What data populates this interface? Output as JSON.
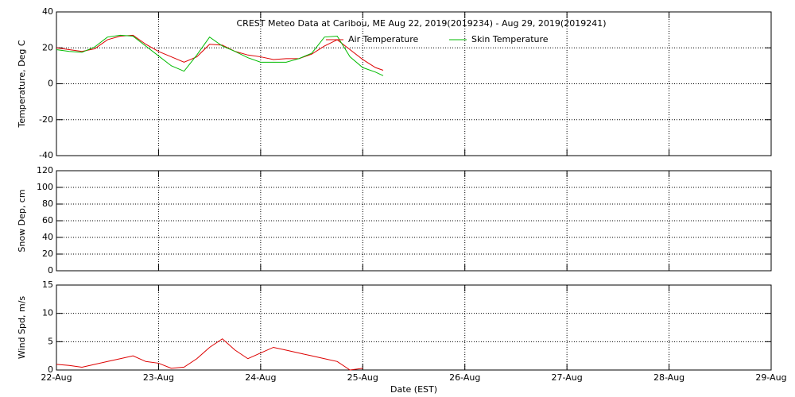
{
  "chart_data": [
    {
      "type": "line",
      "title": "CREST Meteo Data at Caribou, ME   Aug 22, 2019(2019234) - Aug 29, 2019(2019241)",
      "ylabel": "Temperature, Deg C",
      "xlim": [
        234,
        241
      ],
      "ylim": [
        -40,
        40
      ],
      "yticks": [
        -40,
        -20,
        0,
        20,
        40
      ],
      "grid": true,
      "x": [
        234,
        234.125,
        234.25,
        234.375,
        234.5,
        234.625,
        234.75,
        234.875,
        235,
        235.125,
        235.25,
        235.375,
        235.5,
        235.625,
        235.75,
        235.875,
        236,
        236.125,
        236.25,
        236.375,
        236.5,
        236.625,
        236.75,
        236.875,
        237,
        237.125,
        237.2
      ],
      "series": [
        {
          "name": "Air Temperature",
          "color": "#dd0000",
          "values": [
            20,
            19,
            18,
            19.5,
            24.5,
            26.5,
            27,
            22,
            18,
            15,
            12,
            15,
            22,
            21.5,
            18,
            16,
            15,
            13.5,
            14,
            14,
            16.5,
            21,
            24.5,
            19,
            13.5,
            9,
            7.5
          ]
        },
        {
          "name": "Skin Temperature",
          "color": "#00bb00",
          "values": [
            19,
            18,
            17.5,
            20.5,
            26,
            27,
            26.5,
            21,
            15.5,
            10,
            7,
            16,
            26,
            21,
            18,
            14.5,
            12,
            12,
            12,
            14,
            17,
            26,
            26.5,
            15,
            9,
            6.5,
            4.5
          ]
        }
      ]
    },
    {
      "type": "line",
      "ylabel": "Snow Dep, cm",
      "ylim": [
        0,
        120
      ],
      "yticks": [
        0,
        20,
        40,
        60,
        80,
        100,
        120
      ],
      "grid": true,
      "series": []
    },
    {
      "type": "line",
      "ylabel": "Wind Spd, m/s",
      "xlabel": "Date (EST)",
      "xlim": [
        234,
        241
      ],
      "xticks": [
        {
          "value": 234,
          "label": "22-Aug"
        },
        {
          "value": 235,
          "label": "23-Aug"
        },
        {
          "value": 236,
          "label": "24-Aug"
        },
        {
          "value": 237,
          "label": "25-Aug"
        },
        {
          "value": 238,
          "label": "26-Aug"
        },
        {
          "value": 239,
          "label": "27-Aug"
        },
        {
          "value": 240,
          "label": "28-Aug"
        },
        {
          "value": 241,
          "label": "29-Aug"
        }
      ],
      "ylim": [
        0,
        15
      ],
      "yticks": [
        0,
        5,
        10,
        15
      ],
      "grid": true,
      "x": [
        234,
        234.125,
        234.25,
        234.375,
        234.5,
        234.625,
        234.75,
        234.875,
        235,
        235.125,
        235.25,
        235.375,
        235.5,
        235.625,
        235.75,
        235.875,
        236,
        236.125,
        236.25,
        236.375,
        236.5,
        236.625,
        236.75,
        236.875,
        237
      ],
      "series": [
        {
          "name": "Wind Speed",
          "color": "#dd0000",
          "values": [
            1,
            0.8,
            0.5,
            1,
            1.5,
            2,
            2.5,
            1.5,
            1.2,
            0.3,
            0.5,
            2,
            4,
            5.5,
            3.5,
            2,
            3,
            4,
            3.5,
            3,
            2.5,
            2,
            1.5,
            0,
            0.3
          ]
        }
      ]
    }
  ]
}
